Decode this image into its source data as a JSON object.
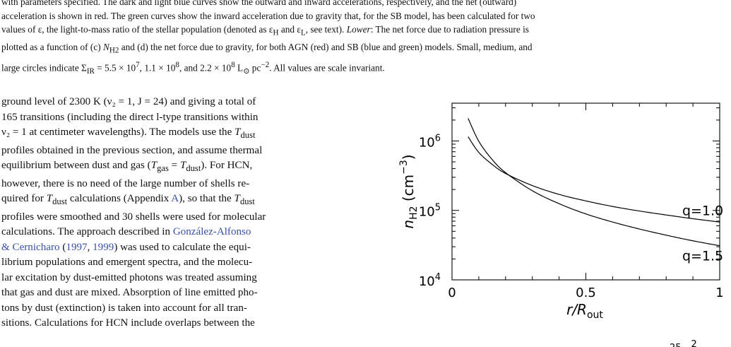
{
  "caption": {
    "line1": "with parameters specified. The dark and light blue curves show the outward and inward accelerations, respectively, and the net (outward)",
    "line2": "acceleration is shown in red. The green curves show the inward acceleration due to gravity that, for the SB model, has been calculated for two",
    "line3a": "values of ε, the light-to-mass ratio of the stellar population (denoted as ε",
    "line3b": "H",
    "line3c": " and ε",
    "line3d": "L",
    "line3e": ", see text). ",
    "line3f": "Lower",
    "line3g": ": The net force due to radiation pressure is",
    "line4a": "plotted as a function of (c) ",
    "line4b": "N",
    "line4c": "H2",
    "line4d": " and (d) the net force due to gravity, for both AGN (red) and SB (blue and green) models. Small, medium, and",
    "line5a": "large circles indicate Σ",
    "line5b": "IR",
    "line5c": " = 5.5 × 10",
    "line5d": "7",
    "line5e": ", 1.1 × 10",
    "line5f": "8",
    "line5g": ", and 2.2 × 10",
    "line5h": "8",
    "line5i": " L",
    "line5j": "⊙",
    "line5k": " pc",
    "line5l": "−2",
    "line5m": ". All values are scale invariant."
  },
  "body": {
    "l1": "ground level of 2300 K (ν₂ = 1, J = 24) and giving a total of",
    "l2": "165 transitions (including the direct l-type transitions within",
    "l3a": "ν₂ = 1 at centimeter wavelengths). The models use the ",
    "l3b": "T",
    "l3c": "dust",
    "l4": "profiles obtained in the previous section, and assume thermal",
    "l5a": "equilibrium between dust and gas (",
    "l5b": "T",
    "l5c": "gas",
    "l5d": " = ",
    "l5e": "T",
    "l5f": "dust",
    "l5g": "). For HCN,",
    "l6": "however, there is no need of the large number of shells re-",
    "l7a": "quired for ",
    "l7b": "T",
    "l7c": "dust",
    "l7d": " calculations (Appendix ",
    "l7e": "A",
    "l7f": "), so that the ",
    "l7g": "T",
    "l7h": "dust",
    "l8": "profiles were smoothed and 30 shells were used for molecular",
    "l9a": "calculations. The approach described in ",
    "l9b": "González-Alfonso",
    "l10a": "& Cernicharo",
    "l10b": " (",
    "l10c": "1997",
    "l10d": ", ",
    "l10e": "1999",
    "l10f": ") was used to calculate the equi-",
    "l11": "librium populations and emergent spectra, and the molecu-",
    "l12": "lar excitation by dust-emitted photons was treated assuming",
    "l13": "that gas and dust are mixed. Absorption of line emitted pho-",
    "l14": "tons by dust (extinction) is taken into account for all tran-",
    "l15": "sitions. Calculations for HCN include overlaps between the"
  },
  "chart_data": {
    "type": "line",
    "title": "",
    "xlabel": "r/R_out",
    "ylabel": "n_H2 (cm^-3)",
    "xlabel_main": "r/R",
    "xlabel_sub": "out",
    "ylabel_main": "n",
    "ylabel_sub": "H2",
    "ylabel_unit": "(cm",
    "ylabel_exp": "−3",
    "ylabel_close": ")",
    "xlim": [
      0,
      1
    ],
    "ylim": [
      10000,
      3500000
    ],
    "yscale": "log",
    "grid": false,
    "x_ticks": [
      {
        "value": 0,
        "label": "0"
      },
      {
        "value": 0.5,
        "label": "0.5"
      },
      {
        "value": 1,
        "label": "1"
      }
    ],
    "y_ticks": [
      {
        "value": 10000,
        "label_base": "10",
        "label_exp": "4"
      },
      {
        "value": 100000,
        "label_base": "10",
        "label_exp": "5"
      },
      {
        "value": 1000000,
        "label_base": "10",
        "label_exp": "6"
      }
    ],
    "series": [
      {
        "name": "q=1.0",
        "label_x": 0.86,
        "label_y": 85000,
        "x": [
          0.06,
          0.1,
          0.15,
          0.2,
          0.3,
          0.4,
          0.5,
          0.6,
          0.7,
          0.8,
          0.9,
          1.0
        ],
        "values": [
          1150000,
          685000,
          460000,
          340000,
          228000,
          170000,
          137000,
          114000,
          98000,
          86000,
          76000,
          68000
        ]
      },
      {
        "name": "q=1.5",
        "label_x": 0.86,
        "label_y": 19000,
        "x": [
          0.06,
          0.1,
          0.15,
          0.2,
          0.3,
          0.4,
          0.5,
          0.6,
          0.7,
          0.8,
          0.9,
          1.0
        ],
        "values": [
          2120000,
          990000,
          540000,
          350000,
          192000,
          125000,
          89000,
          68000,
          54000,
          44000,
          36500,
          31000
        ]
      }
    ]
  },
  "fragment": {
    "base": "25",
    "exp": "2"
  }
}
